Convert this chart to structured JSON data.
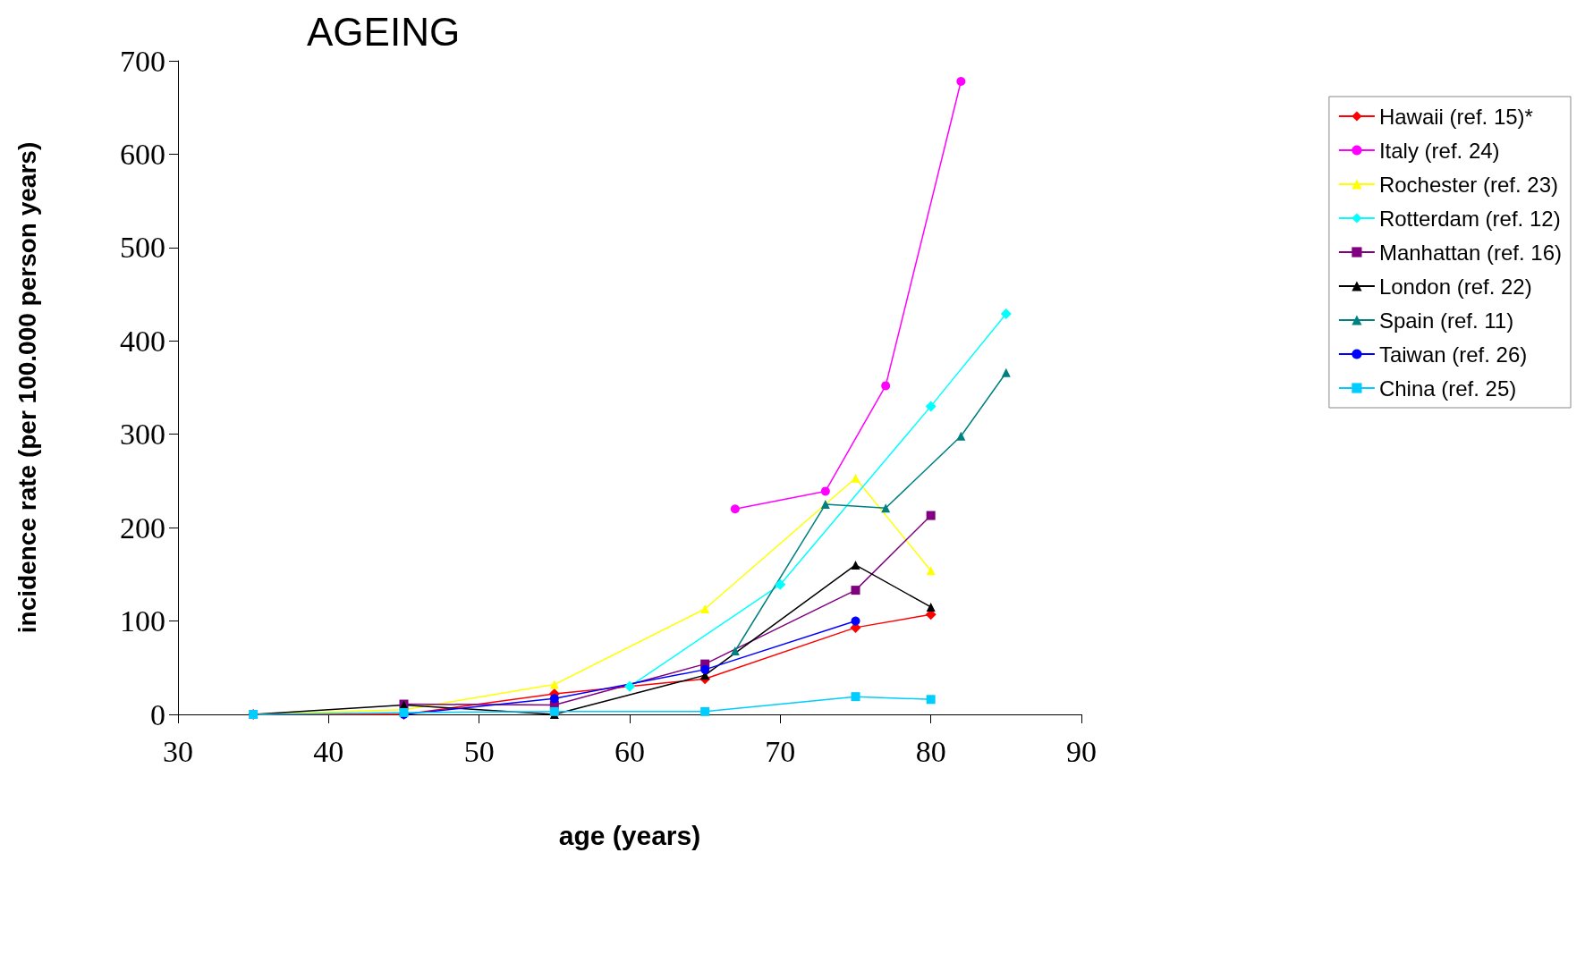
{
  "chart_data": {
    "type": "line",
    "title": "AGEING",
    "xlabel": "age (years)",
    "ylabel": "incidence rate (per 100.000 person years)",
    "xlim": [
      30,
      90
    ],
    "xticks": [
      30,
      40,
      50,
      60,
      70,
      80,
      90
    ],
    "ylim": [
      0,
      700
    ],
    "yticks": [
      0,
      100,
      200,
      300,
      400,
      500,
      600,
      700
    ],
    "grid": false,
    "legend": "right",
    "series": [
      {
        "name": "Hawaii (ref. 15)*",
        "color": "#ff0000",
        "marker": "diamond",
        "x": [
          35,
          45,
          55,
          65,
          75,
          80
        ],
        "values": [
          0,
          0,
          22,
          38,
          93,
          107
        ]
      },
      {
        "name": "Italy (ref. 24)",
        "color": "#ff00ff",
        "marker": "circle",
        "x": [
          67,
          73,
          77,
          82
        ],
        "values": [
          220,
          239,
          352,
          678
        ]
      },
      {
        "name": "Rochester (ref. 23)",
        "color": "#ffff00",
        "marker": "triangle",
        "x": [
          35,
          45,
          55,
          65,
          75,
          80
        ],
        "values": [
          0,
          5,
          32,
          113,
          253,
          154
        ]
      },
      {
        "name": "Rotterdam (ref. 12)",
        "color": "#00ffff",
        "marker": "diamond",
        "x": [
          60,
          70,
          80,
          85
        ],
        "values": [
          30,
          139,
          330,
          429
        ]
      },
      {
        "name": "Manhattan (ref. 16)",
        "color": "#800080",
        "marker": "square",
        "x": [
          45,
          55,
          65,
          75,
          80
        ],
        "values": [
          11,
          10,
          54,
          133,
          213
        ]
      },
      {
        "name": "London (ref. 22)",
        "color": "#000000",
        "marker": "triangle",
        "x": [
          35,
          45,
          55,
          65,
          75,
          80
        ],
        "values": [
          0,
          10,
          0,
          42,
          160,
          115
        ]
      },
      {
        "name": "Spain (ref. 11)",
        "color": "#008080",
        "marker": "triangle",
        "x": [
          67,
          73,
          77,
          82,
          85
        ],
        "values": [
          68,
          225,
          221,
          298,
          366
        ]
      },
      {
        "name": "Taiwan (ref. 26)",
        "color": "#0000ff",
        "marker": "circle",
        "x": [
          45,
          55,
          65,
          75
        ],
        "values": [
          0,
          17,
          48,
          100
        ]
      },
      {
        "name": "China (ref. 25)",
        "color": "#00ccff",
        "marker": "square",
        "x": [
          35,
          45,
          55,
          65,
          75,
          80
        ],
        "values": [
          0,
          2,
          3,
          3,
          19,
          16
        ]
      }
    ]
  }
}
